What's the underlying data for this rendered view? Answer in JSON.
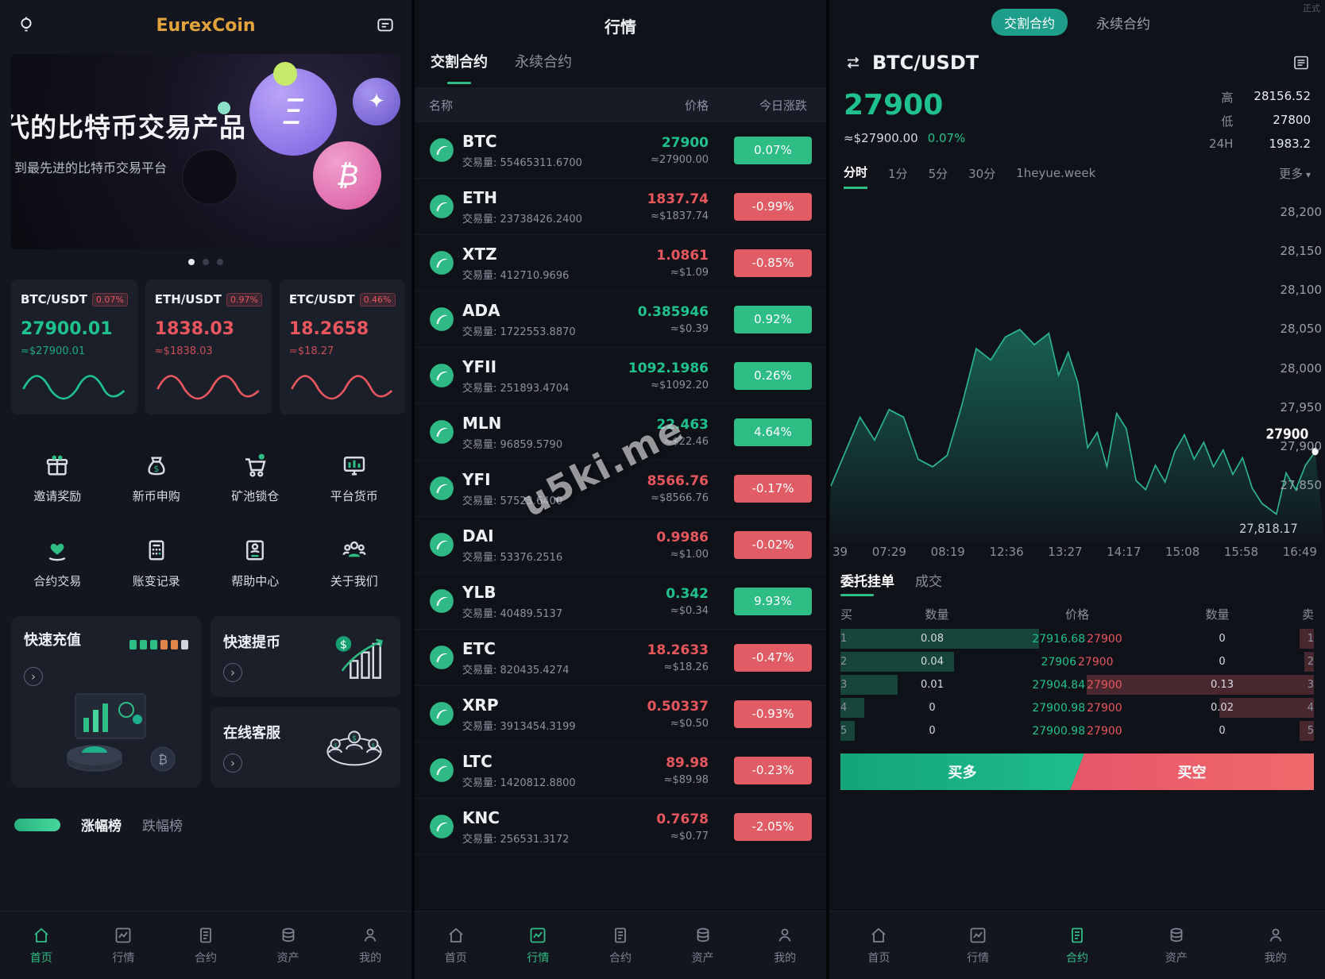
{
  "watermark": "u5ki.me",
  "nav": {
    "items": [
      "首页",
      "行情",
      "合约",
      "资产",
      "我的"
    ]
  },
  "left": {
    "title": "EurexCoin",
    "banner": {
      "line1": "代的比特币交易产品",
      "line2": "到最先进的比特币交易平台"
    },
    "tickers": [
      {
        "pair": "BTC/USDT",
        "badge": "0.07%",
        "price": "27900.01",
        "approx": "≈$27900.01",
        "dir": "up"
      },
      {
        "pair": "ETH/USDT",
        "badge": "0.97%",
        "price": "1838.03",
        "approx": "≈$1838.03",
        "dir": "down"
      },
      {
        "pair": "ETC/USDT",
        "badge": "0.46%",
        "price": "18.2658",
        "approx": "≈$18.27",
        "dir": "down"
      }
    ],
    "features": [
      "邀请奖励",
      "新币申购",
      "矿池锁仓",
      "平台货币",
      "合约交易",
      "账变记录",
      "帮助中心",
      "关于我们"
    ],
    "quick": {
      "recharge": "快速充值",
      "withdraw": "快速提币",
      "service": "在线客服"
    },
    "rank": {
      "up": "涨幅榜",
      "down": "跌幅榜"
    }
  },
  "middle": {
    "title": "行情",
    "tabs": [
      {
        "label": "交割合约",
        "cls": "active"
      },
      {
        "label": "永续合约"
      }
    ],
    "headers": [
      "名称",
      "价格",
      "今日涨跌"
    ],
    "vol_label": "交易量:",
    "coins": [
      {
        "name": "BTC",
        "vol": "55465311.6700",
        "price": "27900",
        "approx": "≈27900.00",
        "change": "0.07%",
        "dir": "up"
      },
      {
        "name": "ETH",
        "vol": "23738426.2400",
        "price": "1837.74",
        "approx": "≈$1837.74",
        "change": "-0.99%",
        "dir": "down"
      },
      {
        "name": "XTZ",
        "vol": "412710.9696",
        "price": "1.0861",
        "approx": "≈$1.09",
        "change": "-0.85%",
        "dir": "down"
      },
      {
        "name": "ADA",
        "vol": "1722553.8870",
        "price": "0.385946",
        "approx": "≈$0.39",
        "change": "0.92%",
        "dir": "up"
      },
      {
        "name": "YFII",
        "vol": "251893.4704",
        "price": "1092.1986",
        "approx": "≈$1092.20",
        "change": "0.26%",
        "dir": "up"
      },
      {
        "name": "MLN",
        "vol": "96859.5790",
        "price": "22.463",
        "approx": "≈$22.46",
        "change": "4.64%",
        "dir": "up"
      },
      {
        "name": "YFI",
        "vol": "57523.6400",
        "price": "8566.76",
        "approx": "≈$8566.76",
        "change": "-0.17%",
        "dir": "down"
      },
      {
        "name": "DAI",
        "vol": "53376.2516",
        "price": "0.9986",
        "approx": "≈$1.00",
        "change": "-0.02%",
        "dir": "down"
      },
      {
        "name": "YLB",
        "vol": "40489.5137",
        "price": "0.342",
        "approx": "≈$0.34",
        "change": "9.93%",
        "dir": "up"
      },
      {
        "name": "ETC",
        "vol": "820435.4274",
        "price": "18.2633",
        "approx": "≈$18.26",
        "change": "-0.47%",
        "dir": "down"
      },
      {
        "name": "XRP",
        "vol": "3913454.3199",
        "price": "0.50337",
        "approx": "≈$0.50",
        "change": "-0.93%",
        "dir": "down"
      },
      {
        "name": "LTC",
        "vol": "1420812.8800",
        "price": "89.98",
        "approx": "≈$89.98",
        "change": "-0.23%",
        "dir": "down"
      },
      {
        "name": "KNC",
        "vol": "256531.3172",
        "price": "0.7678",
        "approx": "≈$0.77",
        "change": "-2.05%",
        "dir": "down"
      }
    ]
  },
  "right": {
    "status": "正式",
    "pills": [
      {
        "label": "交割合约",
        "cls": "active"
      },
      {
        "label": "永续合约"
      }
    ],
    "pair": "BTC/USDT",
    "price": "27900",
    "approx": "≈$27900.00",
    "change": "0.07%",
    "stats": [
      {
        "label": "高",
        "value": "28156.52"
      },
      {
        "label": "低",
        "value": "27800"
      },
      {
        "label": "24H",
        "value": "1983.2"
      }
    ],
    "intervals": [
      {
        "label": "分时",
        "cls": "active"
      },
      {
        "label": "1分"
      },
      {
        "label": "5分"
      },
      {
        "label": "30分"
      },
      {
        "label": "1heyue.week"
      },
      {
        "label": "更多",
        "cls": "more"
      }
    ],
    "chart": {
      "type": "area",
      "y_labels": [
        "28,200",
        "28,150",
        "28,100",
        "28,050",
        "28,000",
        "27,950",
        "27,900",
        "27,850"
      ],
      "x_labels": [
        "39",
        "07:29",
        "08:19",
        "12:36",
        "13:27",
        "14:17",
        "15:08",
        "15:58",
        "16:49"
      ],
      "price_tag": "27900",
      "last_label": "27,818.17",
      "ymin": 27780,
      "ymax": 28240,
      "points": [
        [
          0,
          27855
        ],
        [
          3,
          27900
        ],
        [
          6,
          27945
        ],
        [
          9,
          27915
        ],
        [
          12,
          27955
        ],
        [
          15,
          27945
        ],
        [
          18,
          27890
        ],
        [
          21,
          27880
        ],
        [
          24,
          27895
        ],
        [
          27,
          27960
        ],
        [
          30,
          28035
        ],
        [
          33,
          28020
        ],
        [
          36,
          28050
        ],
        [
          39,
          28060
        ],
        [
          42,
          28040
        ],
        [
          45,
          28055
        ],
        [
          47,
          28000
        ],
        [
          49,
          28030
        ],
        [
          51,
          27990
        ],
        [
          53,
          27905
        ],
        [
          55,
          27925
        ],
        [
          57,
          27880
        ],
        [
          59,
          27950
        ],
        [
          61,
          27930
        ],
        [
          63,
          27862
        ],
        [
          65,
          27850
        ],
        [
          67,
          27882
        ],
        [
          69,
          27860
        ],
        [
          71,
          27900
        ],
        [
          73,
          27922
        ],
        [
          75,
          27890
        ],
        [
          77,
          27912
        ],
        [
          79,
          27880
        ],
        [
          81,
          27902
        ],
        [
          83,
          27870
        ],
        [
          85,
          27892
        ],
        [
          87,
          27852
        ],
        [
          89,
          27832
        ],
        [
          92,
          27818
        ],
        [
          94,
          27872
        ],
        [
          96,
          27850
        ],
        [
          98,
          27882
        ],
        [
          100,
          27900
        ]
      ]
    },
    "orderbook": {
      "tabs": [
        {
          "label": "委托挂单",
          "cls": "active"
        },
        {
          "label": "成交"
        }
      ],
      "headers": [
        "买",
        "数量",
        "价格",
        "数量",
        "卖"
      ],
      "rows": [
        {
          "i": "1",
          "bq": "0.08",
          "bp": "27916.68",
          "sp": "27900",
          "sq": "0",
          "bw": 42,
          "sw": 3
        },
        {
          "i": "2",
          "bq": "0.04",
          "bp": "27906",
          "sp": "27900",
          "sq": "0",
          "bw": 24,
          "sw": 2
        },
        {
          "i": "3",
          "bq": "0.01",
          "bp": "27904.84",
          "sp": "27900",
          "sq": "0.13",
          "bw": 12,
          "sw": 48
        },
        {
          "i": "4",
          "bq": "0",
          "bp": "27900.98",
          "sp": "27900",
          "sq": "0.02",
          "bw": 5,
          "sw": 20
        },
        {
          "i": "5",
          "bq": "0",
          "bp": "27900.98",
          "sp": "27900",
          "sq": "0",
          "bw": 3,
          "sw": 3
        }
      ],
      "buy_button": "买多",
      "sell_button": "买空"
    }
  }
}
